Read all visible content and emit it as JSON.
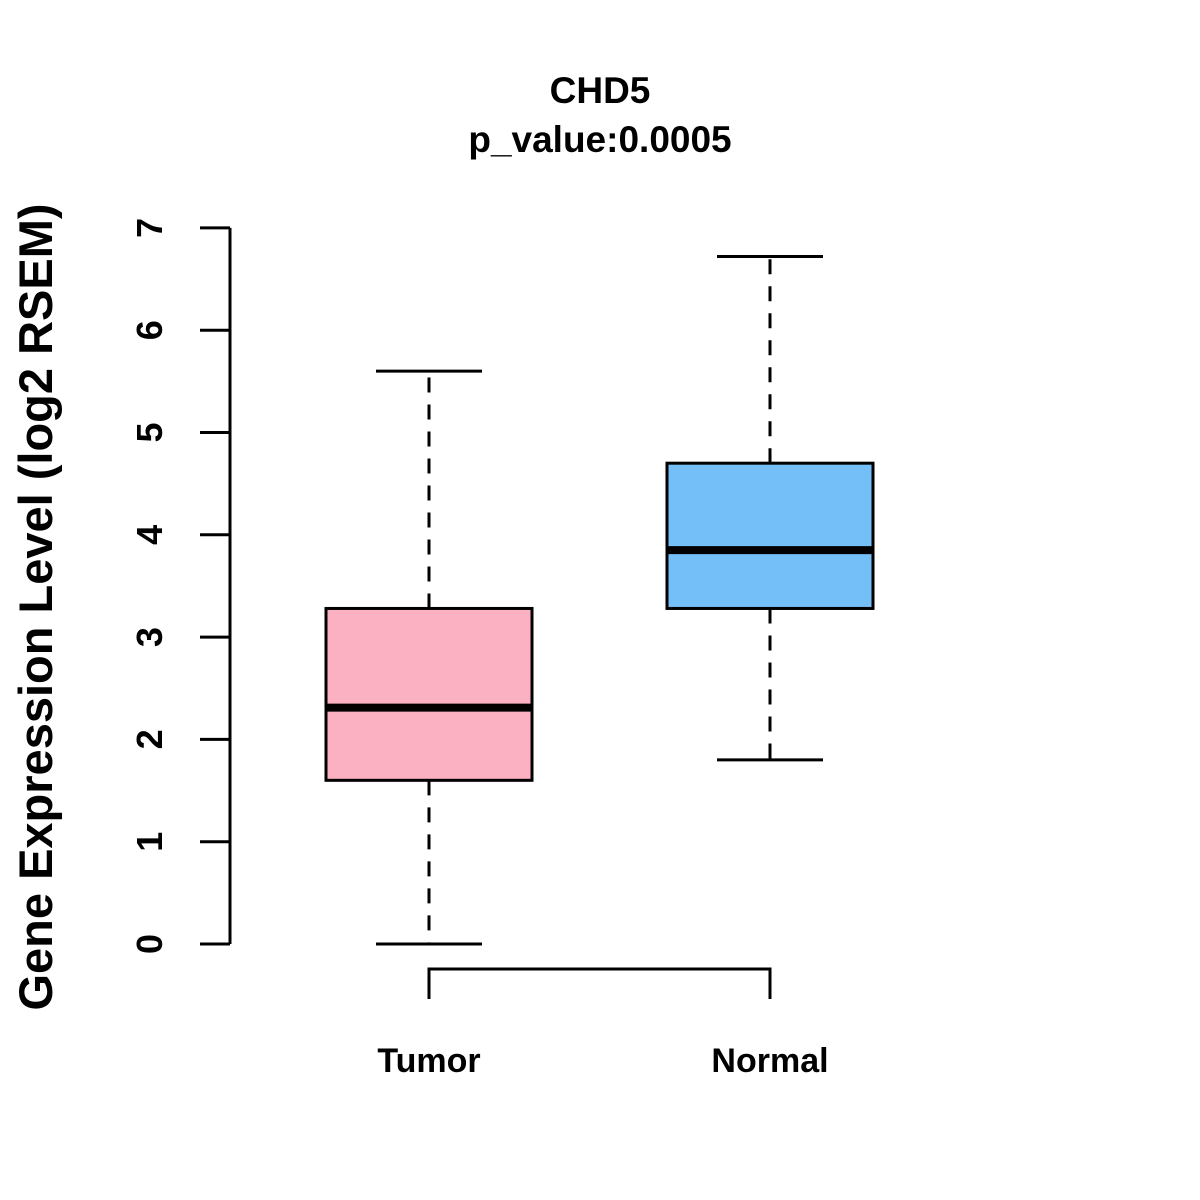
{
  "figure": {
    "background": "#FFFFFF"
  },
  "chart_data": {
    "type": "boxplot",
    "title": "CHD5",
    "subtitle": "p_value:0.0005",
    "gene": "CHD5",
    "p_value": "0.0005",
    "ylabel": "Gene Expression Level (log2 RSEM)",
    "xlabel": "",
    "ylim": [
      0,
      7
    ],
    "yticks": [
      0,
      1,
      2,
      3,
      4,
      5,
      6,
      7
    ],
    "grid": false,
    "legend": "none",
    "categories": [
      "Tumor",
      "Normal"
    ],
    "series": [
      {
        "name": "Tumor",
        "color": "#FCB1C3",
        "stats": {
          "min": 0.0,
          "q1": 1.6,
          "median": 2.31,
          "q3": 3.28,
          "max": 5.6
        }
      },
      {
        "name": "Normal",
        "color": "#74BFF7",
        "stats": {
          "min": 1.8,
          "q1": 3.28,
          "median": 3.85,
          "q3": 4.7,
          "max": 6.72
        }
      }
    ],
    "colors": {
      "box_border": "#000000",
      "median": "#000000",
      "whisker": "#000000",
      "axis": "#000000",
      "text": "#000000"
    }
  }
}
